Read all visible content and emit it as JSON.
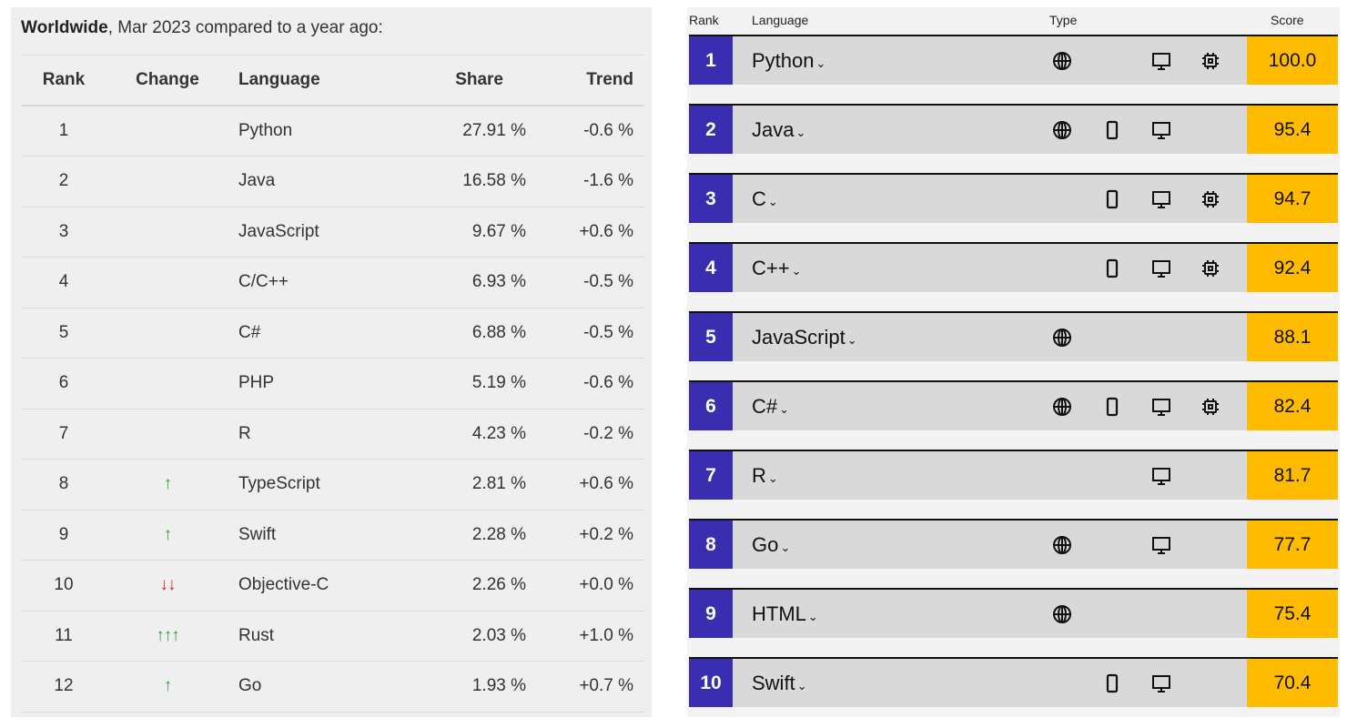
{
  "left": {
    "title_bold": "Worldwide",
    "title_rest": ", Mar 2023 compared to a year ago:",
    "headers": {
      "rank": "Rank",
      "change": "Change",
      "language": "Language",
      "share": "Share",
      "trend": "Trend"
    },
    "rows": [
      {
        "rank": "1",
        "change": "",
        "dir": "",
        "language": "Python",
        "share": "27.91 %",
        "trend": "-0.6 %"
      },
      {
        "rank": "2",
        "change": "",
        "dir": "",
        "language": "Java",
        "share": "16.58 %",
        "trend": "-1.6 %"
      },
      {
        "rank": "3",
        "change": "",
        "dir": "",
        "language": "JavaScript",
        "share": "9.67 %",
        "trend": "+0.6 %"
      },
      {
        "rank": "4",
        "change": "",
        "dir": "",
        "language": "C/C++",
        "share": "6.93 %",
        "trend": "-0.5 %"
      },
      {
        "rank": "5",
        "change": "",
        "dir": "",
        "language": "C#",
        "share": "6.88 %",
        "trend": "-0.5 %"
      },
      {
        "rank": "6",
        "change": "",
        "dir": "",
        "language": "PHP",
        "share": "5.19 %",
        "trend": "-0.6 %"
      },
      {
        "rank": "7",
        "change": "",
        "dir": "",
        "language": "R",
        "share": "4.23 %",
        "trend": "-0.2 %"
      },
      {
        "rank": "8",
        "change": "↑",
        "dir": "up",
        "language": "TypeScript",
        "share": "2.81 %",
        "trend": "+0.6 %"
      },
      {
        "rank": "9",
        "change": "↑",
        "dir": "up",
        "language": "Swift",
        "share": "2.28 %",
        "trend": "+0.2 %"
      },
      {
        "rank": "10",
        "change": "↓↓",
        "dir": "down",
        "language": "Objective-C",
        "share": "2.26 %",
        "trend": "+0.0 %"
      },
      {
        "rank": "11",
        "change": "↑↑↑",
        "dir": "up",
        "language": "Rust",
        "share": "2.03 %",
        "trend": "+1.0 %"
      },
      {
        "rank": "12",
        "change": "↑",
        "dir": "up",
        "language": "Go",
        "share": "1.93 %",
        "trend": "+0.7 %"
      }
    ]
  },
  "right": {
    "headers": {
      "rank": "Rank",
      "language": "Language",
      "type": "Type",
      "score": "Score"
    },
    "colors": {
      "rank_bg": "#3a2db0",
      "score_bg": "#ffbb00",
      "row_bg": "#d9d9d9"
    },
    "rows": [
      {
        "rank": "1",
        "language": "Python",
        "types": [
          "web",
          "desktop",
          "embedded"
        ],
        "score": "100.0"
      },
      {
        "rank": "2",
        "language": "Java",
        "types": [
          "web",
          "mobile",
          "desktop"
        ],
        "score": "95.4"
      },
      {
        "rank": "3",
        "language": "C",
        "types": [
          "mobile",
          "desktop",
          "embedded"
        ],
        "score": "94.7"
      },
      {
        "rank": "4",
        "language": "C++",
        "types": [
          "mobile",
          "desktop",
          "embedded"
        ],
        "score": "92.4"
      },
      {
        "rank": "5",
        "language": "JavaScript",
        "types": [
          "web"
        ],
        "score": "88.1"
      },
      {
        "rank": "6",
        "language": "C#",
        "types": [
          "web",
          "mobile",
          "desktop",
          "embedded"
        ],
        "score": "82.4"
      },
      {
        "rank": "7",
        "language": "R",
        "types": [
          "desktop"
        ],
        "score": "81.7"
      },
      {
        "rank": "8",
        "language": "Go",
        "types": [
          "web",
          "desktop"
        ],
        "score": "77.7"
      },
      {
        "rank": "9",
        "language": "HTML",
        "types": [
          "web"
        ],
        "score": "75.4"
      },
      {
        "rank": "10",
        "language": "Swift",
        "types": [
          "mobile",
          "desktop"
        ],
        "score": "70.4"
      }
    ]
  }
}
